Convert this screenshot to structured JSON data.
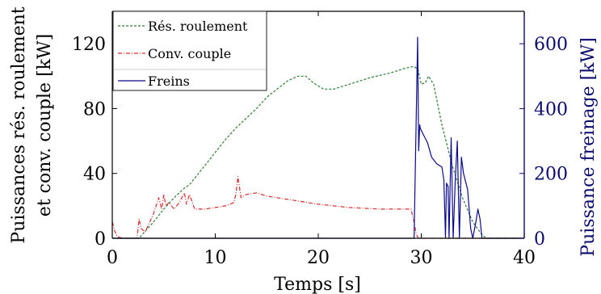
{
  "chart_data": {
    "type": "line",
    "xlabel": "Temps [s]",
    "ylabel_left_line1": "Puissances rés. roulement",
    "ylabel_left_line2": "et conv. couple [kW]",
    "ylabel_right": "Puissance freinage [kW]",
    "xlim": [
      0,
      40
    ],
    "ylim_left": [
      0,
      140
    ],
    "ylim_right": [
      0,
      700
    ],
    "x_ticks": [
      0,
      10,
      20,
      30,
      40
    ],
    "y_left_ticks": [
      0,
      40,
      80,
      120
    ],
    "y_right_ticks": [
      0,
      200,
      400,
      600
    ],
    "grid": false,
    "legend_position": "top-left",
    "colors": {
      "res_roulement": "#2e7d32",
      "conv_couple": "#d32f2f",
      "freins": "#0a0a8a",
      "right_axis": "#0a0a6e"
    },
    "series": [
      {
        "name": "Rés. roulement",
        "axis": "left",
        "style": "dashed",
        "x": [
          0,
          2.6,
          3.0,
          4.0,
          5.0,
          6.0,
          7.0,
          7.5,
          8.0,
          9.0,
          10.0,
          11.0,
          12.0,
          13.0,
          14.0,
          15.0,
          16.0,
          17.0,
          18.0,
          18.8,
          19.5,
          20.5,
          21.5,
          23.0,
          25.0,
          27.0,
          28.5,
          29.3,
          29.7,
          30.0,
          30.4,
          30.7,
          31.2,
          32.0,
          33.0,
          34.0,
          35.0,
          35.8,
          36.3,
          40
        ],
        "y": [
          0,
          0,
          3,
          10,
          18,
          25,
          31,
          33,
          37,
          45,
          53,
          61,
          68,
          74,
          80,
          87,
          92,
          97,
          100,
          100,
          96,
          92,
          92,
          95,
          99,
          102,
          105,
          106,
          104,
          95,
          96,
          100,
          95,
          70,
          45,
          25,
          10,
          3,
          0,
          0
        ]
      },
      {
        "name": "Conv. couple",
        "axis": "left",
        "style": "dashdot",
        "x": [
          0,
          0.1,
          0.2,
          0.5,
          1.0,
          1.8,
          2.4,
          2.6,
          2.8,
          3.2,
          4.0,
          4.5,
          4.8,
          5.0,
          5.2,
          5.5,
          6.0,
          6.5,
          7.0,
          7.2,
          7.5,
          8.0,
          9.0,
          10.0,
          11.0,
          11.8,
          12.0,
          12.2,
          12.5,
          13.0,
          14.0,
          15.0,
          17.0,
          20.0,
          23.0,
          26.0,
          28.0,
          29.0,
          29.3,
          29.5,
          29.7,
          40
        ],
        "y": [
          10,
          8,
          5,
          1,
          0,
          0,
          0,
          12,
          6,
          4,
          15,
          25,
          18,
          27,
          20,
          22,
          18,
          22,
          28,
          21,
          27,
          18,
          18,
          19,
          20,
          22,
          27,
          38,
          25,
          27,
          28,
          26,
          24,
          21,
          19,
          18,
          18,
          18,
          10,
          3,
          0,
          0
        ]
      },
      {
        "name": "Freins",
        "axis": "right",
        "style": "solid",
        "x": [
          0,
          29.3,
          29.5,
          29.65,
          29.75,
          29.85,
          29.9,
          30.2,
          30.6,
          31.0,
          31.5,
          32.0,
          32.2,
          32.35,
          32.45,
          32.6,
          32.7,
          32.9,
          33.1,
          33.3,
          33.5,
          33.7,
          33.9,
          34.1,
          34.5,
          34.8,
          35.0,
          35.3,
          35.5,
          35.7,
          35.9,
          40
        ],
        "y": [
          0,
          0,
          350,
          620,
          270,
          350,
          340,
          320,
          295,
          250,
          230,
          220,
          180,
          0,
          170,
          160,
          0,
          310,
          0,
          180,
          300,
          0,
          250,
          200,
          150,
          30,
          0,
          50,
          90,
          60,
          0,
          0
        ]
      }
    ]
  }
}
